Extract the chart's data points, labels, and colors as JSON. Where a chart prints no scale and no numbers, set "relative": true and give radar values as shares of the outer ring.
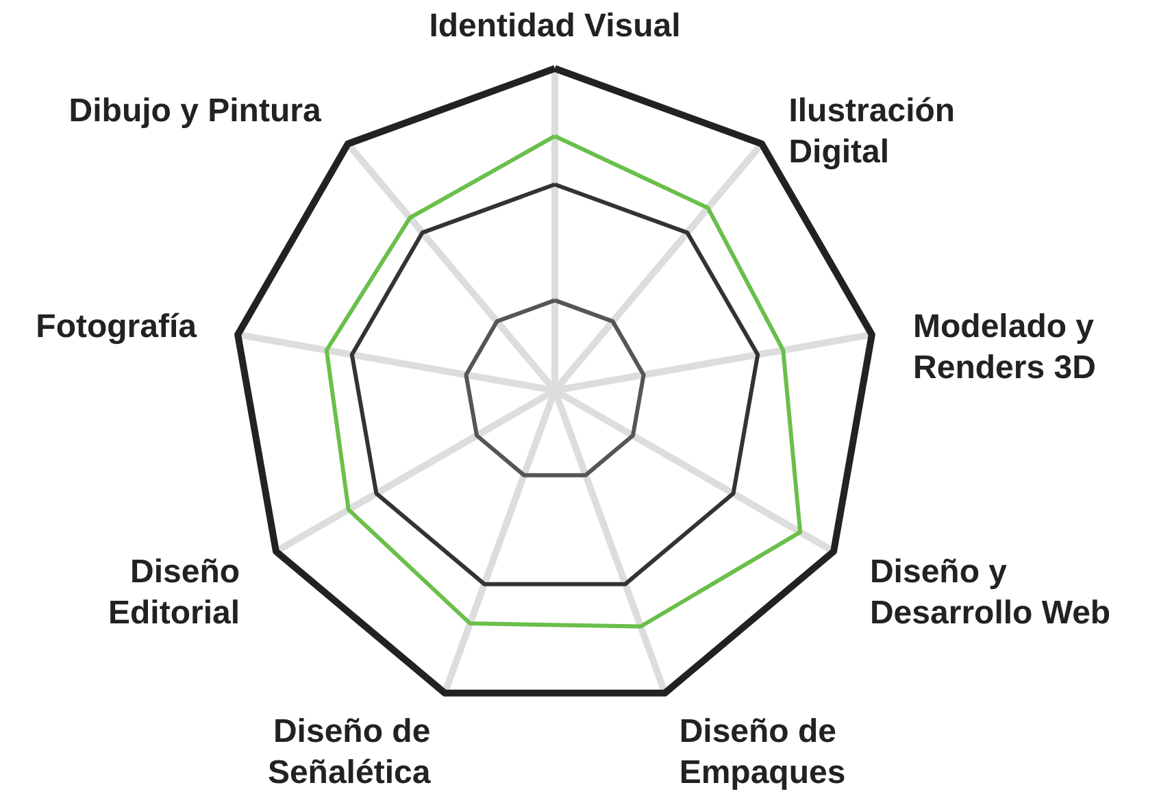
{
  "chart_data": {
    "type": "radar",
    "relative": true,
    "grid": true,
    "marker": "none",
    "line_style": "solid",
    "categories": [
      "Identidad Visual",
      "Ilustración\nDigital",
      "Modelado y\nRenders 3D",
      "Diseño y\nDesarrollo Web",
      "Diseño de\nEmpaques",
      "Diseño de\nSeñalética",
      "Diseño\nEditorial",
      "Fotografía",
      "Dibujo y Pintura"
    ],
    "series": [
      {
        "color": "#6abf4b",
        "values": [
          0.79,
          0.74,
          0.72,
          0.88,
          0.78,
          0.77,
          0.74,
          0.72,
          0.7
        ]
      }
    ]
  }
}
